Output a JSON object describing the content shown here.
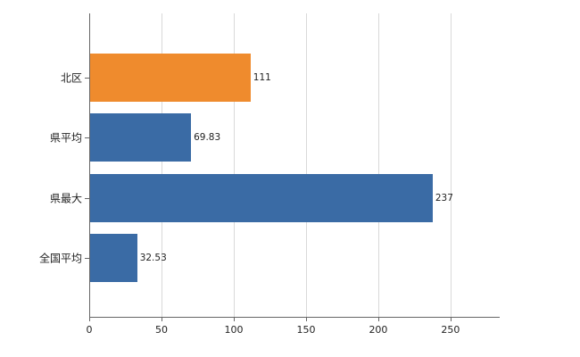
{
  "chart_data": {
    "type": "bar",
    "orientation": "horizontal",
    "title": "",
    "xlabel": "",
    "ylabel": "",
    "categories": [
      "北区",
      "県平均",
      "県最大",
      "全国平均"
    ],
    "values": [
      111,
      69.83,
      237,
      32.53
    ],
    "value_labels": [
      "111",
      "69.83",
      "237",
      "32.53"
    ],
    "bar_colors": [
      "#ef8b2d",
      "#3a6ba5",
      "#3a6ba5",
      "#3a6ba5"
    ],
    "xlim": [
      0,
      284
    ],
    "x_ticks": [
      0,
      50,
      100,
      150,
      200,
      250
    ],
    "grid": "vertical",
    "legend": "none",
    "background": "#ffffff",
    "gridline_color": "#d9d9d9",
    "axis_color": "#666666",
    "text_color": "#222222"
  }
}
